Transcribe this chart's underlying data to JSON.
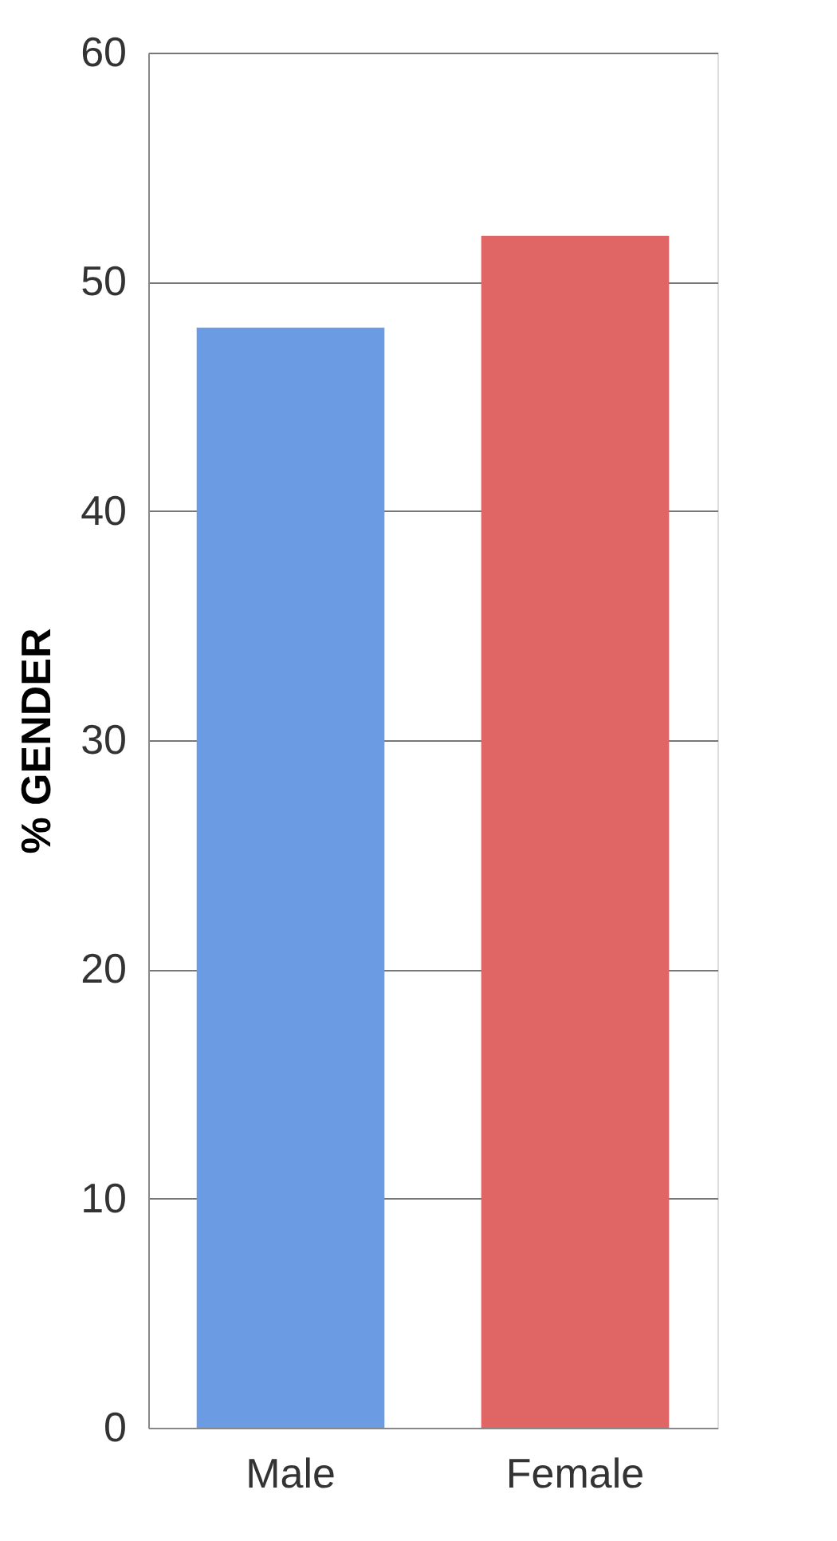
{
  "chart_data": {
    "type": "bar",
    "ylabel": "% GENDER",
    "categories": [
      "Male",
      "Female"
    ],
    "values": [
      48,
      52
    ],
    "colors": [
      "#6a9be3",
      "#e06565"
    ],
    "ylim": [
      0,
      60
    ],
    "yticks": [
      0,
      10,
      20,
      30,
      40,
      50,
      60
    ],
    "grid": "y",
    "legend": false
  }
}
